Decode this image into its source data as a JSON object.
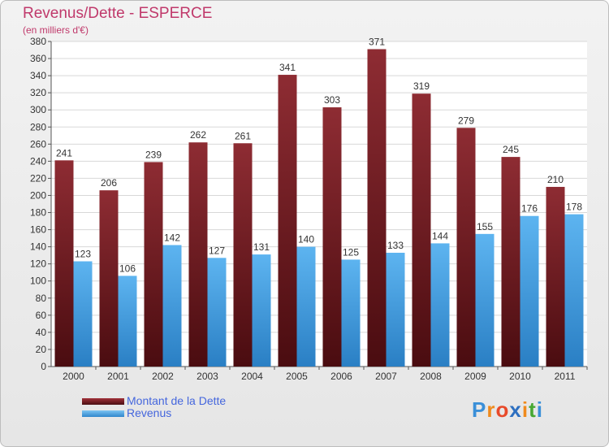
{
  "chart_data": {
    "type": "bar",
    "title": "Revenus/Dette - ESPERCE",
    "subtitle": "(en milliers d'€)",
    "categories": [
      "2000",
      "2001",
      "2002",
      "2003",
      "2004",
      "2005",
      "2006",
      "2007",
      "2008",
      "2009",
      "2010",
      "2011"
    ],
    "series": [
      {
        "name": "Montant de la Dette",
        "color": "#7a2228",
        "values": [
          241,
          206,
          239,
          262,
          261,
          341,
          303,
          371,
          319,
          279,
          245,
          210
        ]
      },
      {
        "name": "Revenus",
        "color": "#4a9fe0",
        "values": [
          123,
          106,
          142,
          127,
          131,
          140,
          125,
          133,
          144,
          155,
          176,
          178
        ]
      }
    ],
    "ylim": [
      0,
      380
    ],
    "yticks": [
      0,
      20,
      40,
      60,
      80,
      100,
      120,
      140,
      160,
      180,
      200,
      220,
      240,
      260,
      280,
      300,
      320,
      340,
      360,
      380
    ],
    "grid": true,
    "legend_position": "bottom-left"
  },
  "logo": {
    "letters": [
      "P",
      "r",
      "o",
      "x",
      "i",
      "t",
      "i"
    ],
    "colors": [
      "#3a8fd8",
      "#f08a1c",
      "#e84a2a",
      "#2d6fc0",
      "#f08a1c",
      "#47a832",
      "#3a8fd8"
    ]
  }
}
